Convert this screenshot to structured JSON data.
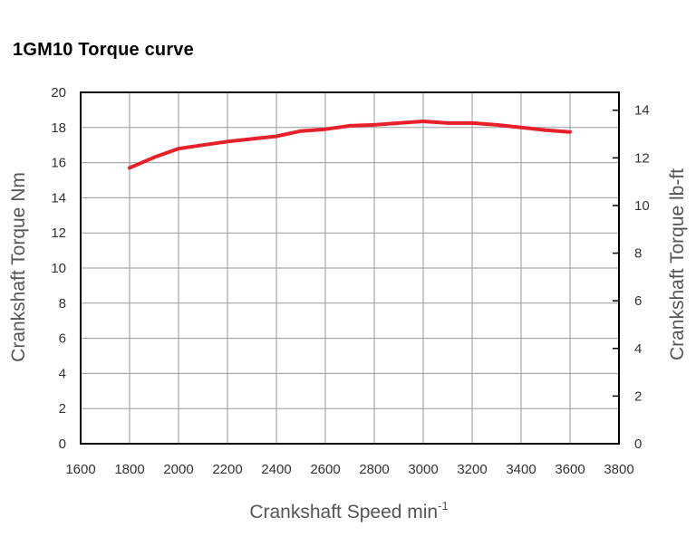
{
  "chart_data": {
    "type": "line",
    "title": "1GM10 Torque curve",
    "xlabel": "Crankshaft Speed min",
    "xlabel_superscript": "-1",
    "ylabel_left": "Crankshaft Torque  Nm",
    "ylabel_right": "Crankshaft Torque  lb-ft",
    "xlim": [
      1600,
      3800
    ],
    "ylim_left": [
      0,
      20
    ],
    "ylim_right": [
      0,
      14.75
    ],
    "x_ticks": [
      "1600",
      "1800",
      "2000",
      "2200",
      "2400",
      "2600",
      "2800",
      "3000",
      "3200",
      "3400",
      "3600",
      "3800"
    ],
    "y_left_ticks": [
      "0",
      "2",
      "4",
      "6",
      "8",
      "10",
      "12",
      "14",
      "16",
      "18",
      "20"
    ],
    "y_right_ticks": [
      "0",
      "2",
      "4",
      "6",
      "8",
      "10",
      "12",
      "14"
    ],
    "grid": true,
    "series": [
      {
        "name": "Torque",
        "color": "#e8202a",
        "x": [
          1800,
          1900,
          2000,
          2100,
          2200,
          2300,
          2400,
          2450,
          2500,
          2600,
          2700,
          2800,
          2900,
          3000,
          3100,
          3200,
          3300,
          3400,
          3500,
          3600
        ],
        "values": [
          15.7,
          16.3,
          16.8,
          17.0,
          17.2,
          17.35,
          17.5,
          17.65,
          17.8,
          17.9,
          18.1,
          18.15,
          18.25,
          18.35,
          18.25,
          18.25,
          18.15,
          18.0,
          17.85,
          17.75
        ]
      }
    ]
  }
}
